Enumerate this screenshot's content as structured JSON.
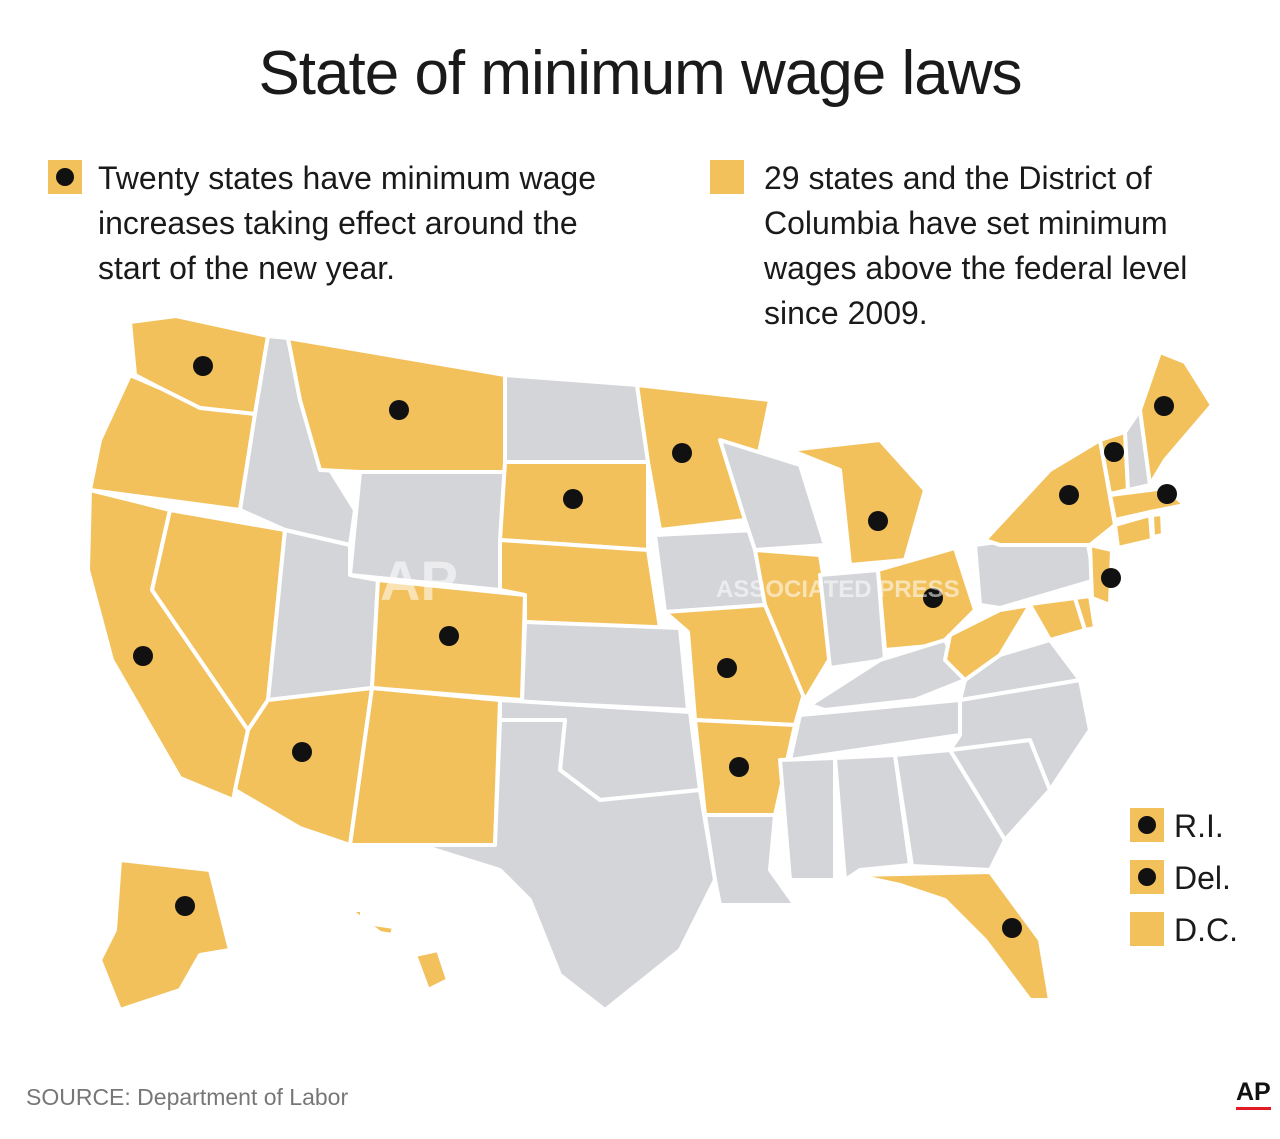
{
  "title": "State of minimum wage laws",
  "legend": {
    "increases": "Twenty states have minimum wage increases taking effect around the start of the new year.",
    "above_federal": "29 states and the District of Columbia have set minimum wages above the federal level since 2009."
  },
  "colors": {
    "above_federal": "#f2c15c",
    "other": "#d4d5d9",
    "border": "#ffffff",
    "dot": "#111111"
  },
  "states": [
    {
      "name": "Washington",
      "above_federal": true,
      "increase": true
    },
    {
      "name": "Oregon",
      "above_federal": true,
      "increase": false
    },
    {
      "name": "California",
      "above_federal": true,
      "increase": true
    },
    {
      "name": "Nevada",
      "above_federal": true,
      "increase": false
    },
    {
      "name": "Idaho",
      "above_federal": false,
      "increase": false
    },
    {
      "name": "Montana",
      "above_federal": true,
      "increase": true
    },
    {
      "name": "Wyoming",
      "above_federal": false,
      "increase": false
    },
    {
      "name": "Utah",
      "above_federal": false,
      "increase": false
    },
    {
      "name": "Colorado",
      "above_federal": true,
      "increase": true
    },
    {
      "name": "Arizona",
      "above_federal": true,
      "increase": true
    },
    {
      "name": "New Mexico",
      "above_federal": true,
      "increase": false
    },
    {
      "name": "North Dakota",
      "above_federal": false,
      "increase": false
    },
    {
      "name": "South Dakota",
      "above_federal": true,
      "increase": true
    },
    {
      "name": "Nebraska",
      "above_federal": true,
      "increase": false
    },
    {
      "name": "Kansas",
      "above_federal": false,
      "increase": false
    },
    {
      "name": "Oklahoma",
      "above_federal": false,
      "increase": false
    },
    {
      "name": "Texas",
      "above_federal": false,
      "increase": false
    },
    {
      "name": "Minnesota",
      "above_federal": true,
      "increase": true
    },
    {
      "name": "Iowa",
      "above_federal": false,
      "increase": false
    },
    {
      "name": "Missouri",
      "above_federal": true,
      "increase": true
    },
    {
      "name": "Arkansas",
      "above_federal": true,
      "increase": true
    },
    {
      "name": "Louisiana",
      "above_federal": false,
      "increase": false
    },
    {
      "name": "Wisconsin",
      "above_federal": false,
      "increase": false
    },
    {
      "name": "Illinois",
      "above_federal": true,
      "increase": false
    },
    {
      "name": "Michigan",
      "above_federal": true,
      "increase": true
    },
    {
      "name": "Indiana",
      "above_federal": false,
      "increase": false
    },
    {
      "name": "Ohio",
      "above_federal": true,
      "increase": true
    },
    {
      "name": "Kentucky",
      "above_federal": false,
      "increase": false
    },
    {
      "name": "Tennessee",
      "above_federal": false,
      "increase": false
    },
    {
      "name": "Mississippi",
      "above_federal": false,
      "increase": false
    },
    {
      "name": "Alabama",
      "above_federal": false,
      "increase": false
    },
    {
      "name": "Georgia",
      "above_federal": false,
      "increase": false
    },
    {
      "name": "Florida",
      "above_federal": true,
      "increase": true
    },
    {
      "name": "South Carolina",
      "above_federal": false,
      "increase": false
    },
    {
      "name": "North Carolina",
      "above_federal": false,
      "increase": false
    },
    {
      "name": "Virginia",
      "above_federal": false,
      "increase": false
    },
    {
      "name": "West Virginia",
      "above_federal": true,
      "increase": false
    },
    {
      "name": "Maryland",
      "above_federal": true,
      "increase": false
    },
    {
      "name": "Delaware",
      "above_federal": true,
      "increase": true
    },
    {
      "name": "Pennsylvania",
      "above_federal": false,
      "increase": false
    },
    {
      "name": "New Jersey",
      "above_federal": true,
      "increase": true
    },
    {
      "name": "New York",
      "above_federal": true,
      "increase": true
    },
    {
      "name": "Connecticut",
      "above_federal": true,
      "increase": false
    },
    {
      "name": "Rhode Island",
      "above_federal": true,
      "increase": true
    },
    {
      "name": "Massachusetts",
      "above_federal": true,
      "increase": true
    },
    {
      "name": "Vermont",
      "above_federal": true,
      "increase": true
    },
    {
      "name": "New Hampshire",
      "above_federal": false,
      "increase": false
    },
    {
      "name": "Maine",
      "above_federal": true,
      "increase": true
    },
    {
      "name": "Alaska",
      "above_federal": true,
      "increase": true
    },
    {
      "name": "Hawaii",
      "above_federal": true,
      "increase": false
    },
    {
      "name": "District of Columbia",
      "above_federal": true,
      "increase": false
    }
  ],
  "small_states": [
    {
      "label": "R.I.",
      "increase": true
    },
    {
      "label": "Del.",
      "increase": true
    },
    {
      "label": "D.C.",
      "increase": false
    }
  ],
  "watermarks": [
    "AP",
    "ASSOCIATED PRESS"
  ],
  "source": "SOURCE: Department of Labor",
  "logo": "AP"
}
